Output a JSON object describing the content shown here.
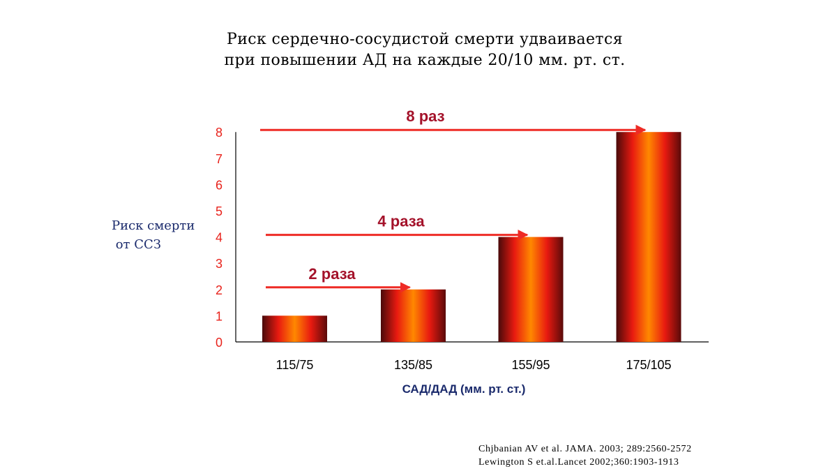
{
  "title": {
    "line1": "Риск сердечно-сосудистой смерти удваивается",
    "line2": "при повышении АД на каждые 20/10 мм. рт. ст."
  },
  "axis": {
    "ylabel_line1": "Риск смерти",
    "ylabel_line2": " от ССЗ",
    "xlabel": "САД/ДАД (мм. рт. ст.)"
  },
  "references": [
    "Chjbanian AV et al. JAMA. 2003; 289:2560-2572",
    "Lewington S et.al.Lancet 2002;360:1903-1913"
  ],
  "colors": {
    "tick_red": "#e8231c",
    "arrow_red": "#ee2b25",
    "annotation_darkred": "#a4122a",
    "label_navy": "#1a2a6c",
    "bar_gradient": [
      "#4a0a0a",
      "#e81a10",
      "#ff8800",
      "#e81a10",
      "#5a0a0a"
    ]
  },
  "chart_data": {
    "type": "bar",
    "categories": [
      "115/75",
      "135/85",
      "155/95",
      "175/105"
    ],
    "values": [
      1,
      2,
      4,
      8
    ],
    "ylim": [
      0,
      8
    ],
    "yticks": [
      0,
      1,
      2,
      3,
      4,
      5,
      6,
      7,
      8
    ],
    "grid": false,
    "legend": "none",
    "annotations": [
      {
        "text": "2 раза",
        "value": 2,
        "to_category": 1
      },
      {
        "text": "4 раза",
        "value": 4,
        "to_category": 2
      },
      {
        "text": "8 раз",
        "value": 8,
        "to_category": 3
      }
    ]
  }
}
